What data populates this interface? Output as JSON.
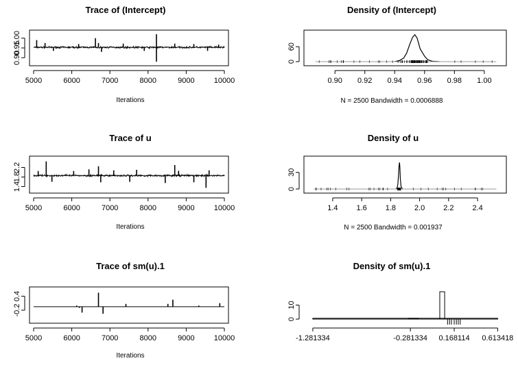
{
  "chart_data": [
    {
      "type": "line",
      "title": "Trace of (Intercept)",
      "xlabel": "Iterations",
      "ylabel": "",
      "xlim": [
        5000,
        10000
      ],
      "ylim": [
        0.88,
        1.02
      ],
      "xticks": [
        5000,
        6000,
        7000,
        8000,
        9000,
        10000
      ],
      "xtick_labels": [
        "5000",
        "6000",
        "7000",
        "8000",
        "9000",
        "10000"
      ],
      "yticks": [
        0.9,
        0.95,
        1.0
      ],
      "ytick_labels": [
        "0.90",
        "0.95",
        "1.00"
      ],
      "base": 0.953,
      "noise": 0.006,
      "spikes": [
        {
          "x": 5080,
          "y": 0.99
        },
        {
          "x": 5300,
          "y": 0.975
        },
        {
          "x": 5520,
          "y": 0.935
        },
        {
          "x": 6180,
          "y": 0.97
        },
        {
          "x": 6620,
          "y": 1.0
        },
        {
          "x": 6700,
          "y": 0.975
        },
        {
          "x": 6780,
          "y": 0.93
        },
        {
          "x": 7350,
          "y": 0.972
        },
        {
          "x": 7900,
          "y": 0.935
        },
        {
          "x": 8220,
          "y": 1.02
        },
        {
          "x": 8220,
          "y": 0.88
        },
        {
          "x": 8700,
          "y": 0.972
        },
        {
          "x": 9200,
          "y": 0.97
        },
        {
          "x": 9560,
          "y": 0.935
        },
        {
          "x": 9850,
          "y": 0.967
        }
      ]
    },
    {
      "type": "area",
      "title": "Density of (Intercept)",
      "xlabel": "N = 2500   Bandwidth = 0.0006888",
      "ylabel": "",
      "xlim": [
        0.882,
        1.012
      ],
      "ylim": [
        0,
        110
      ],
      "xticks": [
        0.9,
        0.92,
        0.94,
        0.96,
        0.98,
        1.0
      ],
      "xtick_labels": [
        "0.90",
        "0.92",
        "0.94",
        "0.96",
        "0.98",
        "1.00"
      ],
      "yticks": [
        0,
        60
      ],
      "ytick_labels": [
        "0",
        "60"
      ],
      "x": [
        0.94,
        0.943,
        0.946,
        0.948,
        0.95,
        0.952,
        0.9535,
        0.955,
        0.957,
        0.958,
        0.96,
        0.962,
        0.965,
        0.97
      ],
      "y": [
        0,
        4,
        14,
        34,
        68,
        98,
        108,
        95,
        52,
        42,
        22,
        8,
        2,
        0
      ],
      "rug_range": [
        0.887,
        1.008
      ]
    },
    {
      "type": "line",
      "title": "Trace of u",
      "xlabel": "Iterations",
      "ylabel": "",
      "xlim": [
        5000,
        10000
      ],
      "ylim": [
        1.3,
        2.5
      ],
      "xticks": [
        5000,
        6000,
        7000,
        8000,
        9000,
        10000
      ],
      "xtick_labels": [
        "5000",
        "6000",
        "7000",
        "8000",
        "9000",
        "10000"
      ],
      "yticks": [
        1.4,
        1.8,
        2.2
      ],
      "ytick_labels": [
        "1.4",
        "1.8",
        "2.2"
      ],
      "base": 1.86,
      "noise": 0.05,
      "spikes": [
        {
          "x": 5120,
          "y": 2.05
        },
        {
          "x": 5330,
          "y": 2.45
        },
        {
          "x": 5480,
          "y": 1.6
        },
        {
          "x": 6050,
          "y": 2.05
        },
        {
          "x": 6450,
          "y": 2.12
        },
        {
          "x": 6700,
          "y": 2.25
        },
        {
          "x": 6760,
          "y": 1.58
        },
        {
          "x": 7100,
          "y": 2.08
        },
        {
          "x": 7520,
          "y": 1.6
        },
        {
          "x": 7700,
          "y": 2.1
        },
        {
          "x": 8450,
          "y": 1.55
        },
        {
          "x": 8700,
          "y": 2.3
        },
        {
          "x": 8800,
          "y": 2.06
        },
        {
          "x": 9200,
          "y": 1.58
        },
        {
          "x": 9520,
          "y": 1.35
        },
        {
          "x": 9600,
          "y": 2.08
        }
      ]
    },
    {
      "type": "area",
      "title": "Density of u",
      "xlabel": "N = 2500   Bandwidth = 0.001937",
      "ylabel": "",
      "xlim": [
        1.23,
        2.57
      ],
      "ylim": [
        0,
        52
      ],
      "xticks": [
        1.4,
        1.6,
        1.8,
        2.0,
        2.2,
        2.4
      ],
      "xtick_labels": [
        "1.4",
        "1.6",
        "1.8",
        "2.0",
        "2.2",
        "2.4"
      ],
      "yticks": [
        0,
        30
      ],
      "ytick_labels": [
        "0",
        "30"
      ],
      "x": [
        1.835,
        1.845,
        1.85,
        1.855,
        1.858,
        1.861,
        1.864,
        1.867,
        1.872,
        1.882
      ],
      "y": [
        0,
        2,
        9,
        28,
        42,
        48,
        38,
        18,
        4,
        0
      ],
      "rug_range": [
        1.27,
        2.53
      ]
    },
    {
      "type": "line",
      "title": "Trace of sm(u).1",
      "xlabel": "Iterations",
      "ylabel": "",
      "xlim": [
        5000,
        10000
      ],
      "ylim": [
        -0.58,
        0.62
      ],
      "xticks": [
        5000,
        6000,
        7000,
        8000,
        9000,
        10000
      ],
      "xtick_labels": [
        "5000",
        "6000",
        "7000",
        "8000",
        "9000",
        "10000"
      ],
      "yticks": [
        -0.2,
        0.4
      ],
      "ytick_labels": [
        "-0.2",
        "0.4"
      ],
      "base": -0.05,
      "noise": 0,
      "spikes": [
        {
          "x": 6130,
          "y": 0.0
        },
        {
          "x": 6200,
          "y": -0.1
        },
        {
          "x": 6270,
          "y": -0.3
        },
        {
          "x": 6700,
          "y": 0.55
        },
        {
          "x": 6820,
          "y": -0.35
        },
        {
          "x": 7420,
          "y": 0.07
        },
        {
          "x": 8520,
          "y": 0.07
        },
        {
          "x": 8650,
          "y": 0.25
        },
        {
          "x": 9330,
          "y": 0.0
        },
        {
          "x": 9880,
          "y": 0.1
        }
      ]
    },
    {
      "type": "bar",
      "title": "Density of sm(u).1",
      "xlabel": "",
      "ylabel": "",
      "xlim": [
        -1.33,
        0.66
      ],
      "ylim": [
        0,
        20
      ],
      "xticks": [
        -1.281334,
        -0.281334,
        0.168114,
        0.613418
      ],
      "xtick_labels": [
        "-1.281334",
        "-0.281334",
        "0.168114",
        "0.613418"
      ],
      "yticks": [
        0,
        10
      ],
      "ytick_labels": [
        "0",
        "10"
      ],
      "bars": [
        {
          "x0": -1.281334,
          "x1": 0.613418,
          "y": 0.6
        },
        {
          "x0": -0.3,
          "x1": -0.2,
          "y": 0.6
        },
        {
          "x0": 0.02,
          "x1": 0.07,
          "y": 19.5
        }
      ],
      "ticks_marks": [
        0.1,
        0.12,
        0.14,
        0.168114,
        0.19,
        0.21,
        0.23
      ]
    }
  ]
}
